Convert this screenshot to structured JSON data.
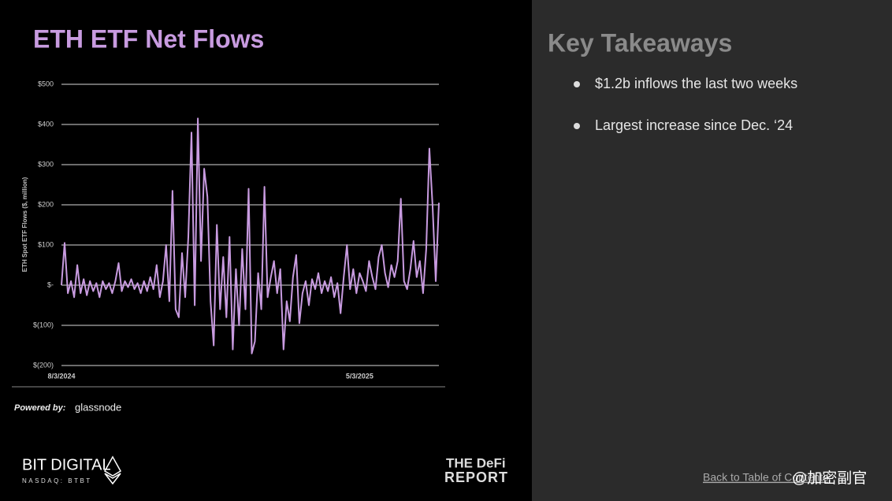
{
  "chart_data": {
    "type": "line",
    "title": "ETH ETF Net Flows",
    "y_label": "ETH Spot ETF Flows ($, million)",
    "categories": [
      "8/3/2024",
      null,
      null,
      null,
      null,
      null,
      null,
      null,
      null,
      null,
      null,
      null,
      null,
      null,
      null,
      null,
      null,
      null,
      null,
      null,
      null,
      null,
      null,
      null,
      null,
      null,
      null,
      null,
      null,
      null,
      null,
      null,
      null,
      null,
      null,
      null,
      null,
      null,
      null,
      null,
      null,
      null,
      null,
      null,
      null,
      null,
      null,
      null,
      null,
      null,
      null,
      null,
      null,
      null,
      null,
      null,
      null,
      null,
      null,
      null,
      null,
      null,
      null,
      null,
      null,
      null,
      null,
      null,
      null,
      null,
      null,
      null,
      null,
      null,
      null,
      null,
      null,
      null,
      null,
      null,
      null,
      null,
      null,
      null,
      null,
      null,
      null,
      null,
      null,
      null,
      null,
      null,
      null,
      null,
      "5/3/2025",
      null,
      null,
      null,
      null,
      null,
      null,
      null,
      null,
      null,
      null,
      null,
      null,
      null,
      null,
      null,
      null,
      null,
      null,
      null,
      null,
      null,
      null,
      null,
      null,
      null
    ],
    "values": [
      0,
      105,
      -20,
      10,
      -30,
      50,
      -20,
      15,
      -25,
      10,
      -15,
      5,
      -30,
      10,
      -10,
      5,
      -20,
      10,
      55,
      -15,
      10,
      -5,
      15,
      -10,
      5,
      -20,
      10,
      -15,
      20,
      -10,
      50,
      -30,
      10,
      100,
      -40,
      235,
      -60,
      -80,
      80,
      -30,
      120,
      380,
      -50,
      415,
      60,
      290,
      220,
      -40,
      -150,
      150,
      -60,
      70,
      -80,
      120,
      -160,
      40,
      -100,
      90,
      -60,
      240,
      -170,
      -140,
      30,
      -60,
      245,
      -30,
      20,
      60,
      -20,
      40,
      -160,
      -40,
      -90,
      20,
      75,
      -95,
      -20,
      10,
      -50,
      15,
      -10,
      30,
      -20,
      10,
      -15,
      20,
      -30,
      5,
      -70,
      20,
      100,
      -10,
      40,
      -20,
      30,
      10,
      -15,
      60,
      20,
      -10,
      70,
      100,
      30,
      -5,
      50,
      20,
      60,
      215,
      10,
      -10,
      40,
      110,
      20,
      60,
      -20,
      90,
      340,
      200,
      10,
      205
    ],
    "color": "#c89be0",
    "ylim": [
      -200,
      500
    ],
    "yticks": [
      {
        "value": -200,
        "label": "$(200)"
      },
      {
        "value": -100,
        "label": "$(100)"
      },
      {
        "value": 0,
        "label": "$-"
      },
      {
        "value": 100,
        "label": "$100"
      },
      {
        "value": 200,
        "label": "$200"
      },
      {
        "value": 300,
        "label": "$300"
      },
      {
        "value": 400,
        "label": "$400"
      },
      {
        "value": 500,
        "label": "$500"
      }
    ],
    "grid": true
  },
  "footer": {
    "powered_by": "Powered by:",
    "source": "glassnode",
    "brand": "BIT DIGITAL",
    "ticker": "NASDAQ: BTBT",
    "partner_line1": "THE DeFi",
    "partner_line2": "REPORT"
  },
  "sidebar": {
    "title": "Key Takeaways",
    "bullets": [
      "$1.2b inflows the last two weeks",
      "Largest increase since Dec. ‘24"
    ],
    "link": "Back to Table of Contents",
    "watermark": "@加密副官"
  }
}
